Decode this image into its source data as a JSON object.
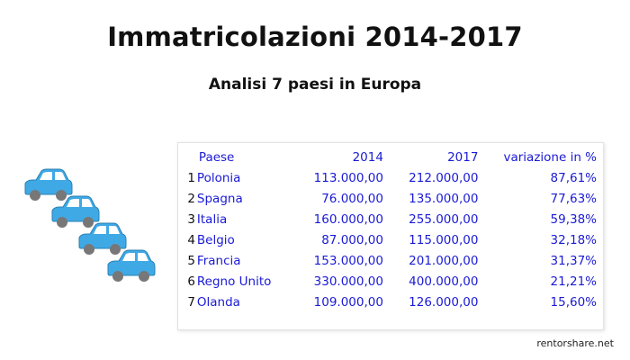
{
  "header": {
    "title": "Immatricolazioni 2014-2017",
    "subtitle": "Analisi 7 paesi in Europa"
  },
  "table": {
    "columns": [
      "Paese",
      "2014",
      "2017",
      "variazione in %"
    ],
    "rows": [
      {
        "rank": "1",
        "paese": "Polonia",
        "y2014": "113.000,00",
        "y2017": "212.000,00",
        "var": "87,61%"
      },
      {
        "rank": "2",
        "paese": "Spagna",
        "y2014": "76.000,00",
        "y2017": "135.000,00",
        "var": "77,63%"
      },
      {
        "rank": "3",
        "paese": "Italia",
        "y2014": "160.000,00",
        "y2017": "255.000,00",
        "var": "59,38%"
      },
      {
        "rank": "4",
        "paese": "Belgio",
        "y2014": "87.000,00",
        "y2017": "115.000,00",
        "var": "32,18%"
      },
      {
        "rank": "5",
        "paese": "Francia",
        "y2014": "153.000,00",
        "y2017": "201.000,00",
        "var": "31,37%"
      },
      {
        "rank": "6",
        "paese": "Regno Unito",
        "y2014": "330.000,00",
        "y2017": "400.000,00",
        "var": "21,21%"
      },
      {
        "rank": "7",
        "paese": "Olanda",
        "y2014": "109.000,00",
        "y2017": "126.000,00",
        "var": "15,60%"
      }
    ]
  },
  "footer": {
    "watermark": "rentorshare.net"
  },
  "colors": {
    "text_blue": "#1a1ad6",
    "car_body": "#3fa9e6",
    "car_window": "#ffffff"
  }
}
